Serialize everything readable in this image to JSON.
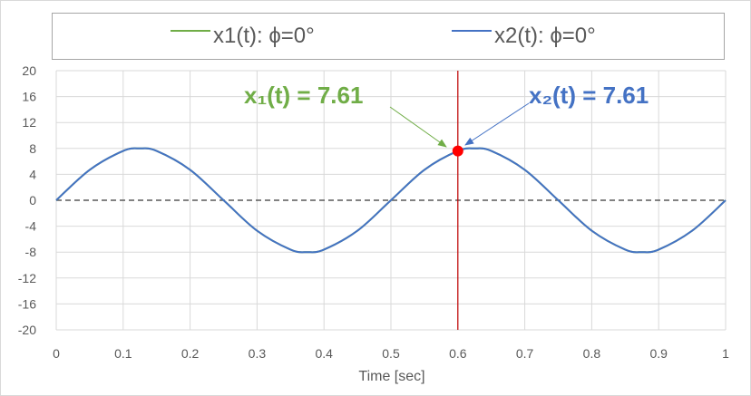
{
  "chart_data": {
    "type": "line",
    "xlabel": "Time [sec]",
    "ylabel": "",
    "xlim": [
      0,
      1
    ],
    "ylim": [
      -20,
      20
    ],
    "x_ticks": [
      "0",
      "0.1",
      "0.2",
      "0.3",
      "0.4",
      "0.5",
      "0.6",
      "0.7",
      "0.8",
      "0.9",
      "1"
    ],
    "y_ticks": [
      "20",
      "16",
      "12",
      "8",
      "4",
      "0",
      "-4",
      "-8",
      "-12",
      "-16",
      "-20"
    ],
    "grid": true,
    "legend_position": "top",
    "series": [
      {
        "name": "x1(t): ϕ=0°",
        "color": "#70ad47",
        "x": [
          0,
          0.05,
          0.1,
          0.125,
          0.15,
          0.2,
          0.25,
          0.3,
          0.35,
          0.375,
          0.4,
          0.45,
          0.5,
          0.55,
          0.6,
          0.625,
          0.65,
          0.7,
          0.75,
          0.8,
          0.85,
          0.875,
          0.9,
          0.95,
          1
        ],
        "y": [
          0,
          4.7,
          7.61,
          8,
          7.61,
          4.7,
          0,
          -4.7,
          -7.61,
          -8,
          -7.61,
          -4.7,
          0,
          4.7,
          7.61,
          8,
          7.61,
          4.7,
          0,
          -4.7,
          -7.61,
          -8,
          -7.61,
          -4.7,
          0
        ]
      },
      {
        "name": "x2(t): ϕ=0°",
        "color": "#4472c4",
        "x": [
          0,
          0.05,
          0.1,
          0.125,
          0.15,
          0.2,
          0.25,
          0.3,
          0.35,
          0.375,
          0.4,
          0.45,
          0.5,
          0.55,
          0.6,
          0.625,
          0.65,
          0.7,
          0.75,
          0.8,
          0.85,
          0.875,
          0.9,
          0.95,
          1
        ],
        "y": [
          0,
          4.7,
          7.61,
          8,
          7.61,
          4.7,
          0,
          -4.7,
          -7.61,
          -8,
          -7.61,
          -4.7,
          0,
          4.7,
          7.61,
          8,
          7.61,
          4.7,
          0,
          -4.7,
          -7.61,
          -8,
          -7.61,
          -4.7,
          0
        ]
      }
    ],
    "zero_line": {
      "y": 0,
      "style": "dashed",
      "color": "#595959"
    },
    "cursor_line": {
      "x": 0.6,
      "color": "#c00000"
    },
    "marker": {
      "x": 0.6,
      "y": 7.61,
      "color": "#ff0000"
    },
    "annotations": [
      {
        "text": "x₁(t)  = 7.61",
        "color": "#70ad47",
        "points_to": [
          0.6,
          7.61
        ]
      },
      {
        "text": "x₂(t)  = 7.61",
        "color": "#4472c4",
        "points_to": [
          0.6,
          7.61
        ]
      }
    ]
  }
}
